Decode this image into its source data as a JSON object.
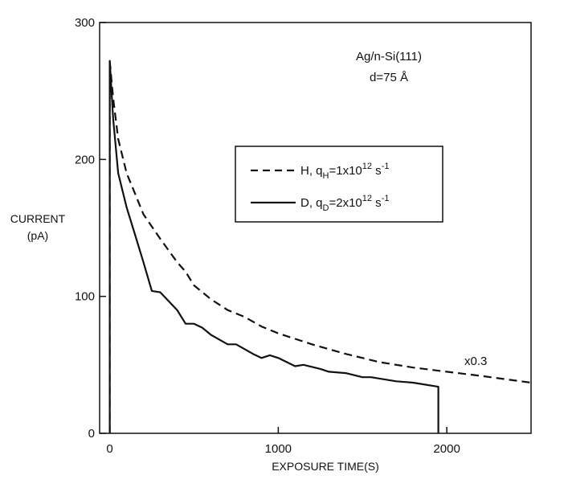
{
  "chart_data": {
    "type": "line",
    "title": "",
    "xlabel": "EXPOSURE TIME(S)",
    "ylabel_lines": [
      "CURRENT",
      "(pA)"
    ],
    "xlim": [
      -60,
      2500
    ],
    "ylim": [
      0,
      300
    ],
    "xticks": [
      0,
      1000,
      2000
    ],
    "xtick_labels": [
      "0",
      "1000",
      "2000"
    ],
    "yticks": [
      0,
      100,
      200,
      300
    ],
    "ytick_labels": [
      "0",
      "100",
      "200",
      "300"
    ],
    "grid": false,
    "legend_position": "center-right",
    "annotations": {
      "sample": "Ag/n-Si(111)",
      "thickness": "d=75 Å",
      "scale_note": "x0.3"
    },
    "series": [
      {
        "name": "H, qH=1x10^12 s^-1",
        "legend": {
          "prefix": "H, q",
          "sub": "H",
          "mid": "=1x10",
          "sup": "12",
          "unit": " s",
          "unit_sup": "-1"
        },
        "style": "dashed",
        "points": [
          [
            0,
            0
          ],
          [
            0,
            272
          ],
          [
            20,
            245
          ],
          [
            50,
            215
          ],
          [
            100,
            190
          ],
          [
            150,
            175
          ],
          [
            200,
            160
          ],
          [
            300,
            142
          ],
          [
            400,
            125
          ],
          [
            450,
            118
          ],
          [
            500,
            108
          ],
          [
            600,
            98
          ],
          [
            700,
            90
          ],
          [
            800,
            85
          ],
          [
            900,
            78
          ],
          [
            1000,
            73
          ],
          [
            1200,
            65
          ],
          [
            1400,
            58
          ],
          [
            1600,
            52
          ],
          [
            1800,
            48
          ],
          [
            2000,
            45
          ],
          [
            2200,
            42
          ],
          [
            2500,
            37
          ]
        ]
      },
      {
        "name": "D, qD=2x10^12 s^-1",
        "legend": {
          "prefix": "D, q",
          "sub": "D",
          "mid": "=2x10",
          "sup": "12",
          "unit": " s",
          "unit_sup": "-1"
        },
        "style": "solid",
        "points": [
          [
            0,
            0
          ],
          [
            0,
            272
          ],
          [
            20,
            230
          ],
          [
            50,
            190
          ],
          [
            100,
            165
          ],
          [
            150,
            145
          ],
          [
            200,
            125
          ],
          [
            250,
            104
          ],
          [
            300,
            103
          ],
          [
            400,
            90
          ],
          [
            450,
            80
          ],
          [
            500,
            80
          ],
          [
            550,
            77
          ],
          [
            600,
            72
          ],
          [
            700,
            65
          ],
          [
            750,
            65
          ],
          [
            850,
            58
          ],
          [
            900,
            55
          ],
          [
            950,
            57
          ],
          [
            1000,
            55
          ],
          [
            1100,
            49
          ],
          [
            1150,
            50
          ],
          [
            1250,
            47
          ],
          [
            1300,
            45
          ],
          [
            1400,
            44
          ],
          [
            1500,
            41
          ],
          [
            1550,
            41
          ],
          [
            1700,
            38
          ],
          [
            1800,
            37
          ],
          [
            1950,
            34
          ],
          [
            1950,
            0
          ]
        ]
      }
    ]
  }
}
